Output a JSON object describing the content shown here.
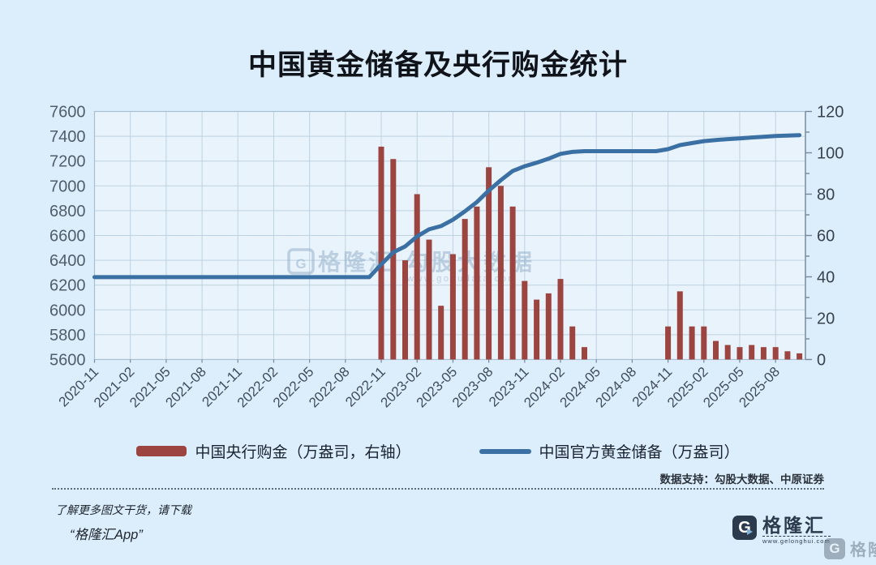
{
  "page": {
    "background": "#dceefb",
    "plot_background": "#e9f3fb",
    "grid_color": "#bdd2e2",
    "frame_color": "#a9c0d4",
    "axis_color": "#76889a",
    "tick_label_color": "#46525f"
  },
  "title": "中国黄金储备及央行购金统计",
  "legend": [
    {
      "type": "bar",
      "color": "#9c4440",
      "label": "中国央行购金（万盎司，右轴）"
    },
    {
      "type": "line",
      "color": "#3a70a3",
      "label": "中国官方黄金储备（万盎司）"
    }
  ],
  "source_note": "数据支持：勾股大数据、中原证券",
  "watermark": {
    "brand": "格隆汇",
    "badge_letter": "G",
    "separator": "|",
    "name": "勾股大数据",
    "url": "www.gogudata.com"
  },
  "footer": {
    "promo_line1": "了解更多图文干货，请下载",
    "promo_line2": "“格隆汇App”",
    "brand_badge_letter": "G",
    "brand_name": "格隆汇",
    "brand_url": "www.gelonghui.com",
    "corner_brand_name": "格隆汇"
  },
  "chart_data": {
    "type": "bar+line combo",
    "title": "中国黄金储备及央行购金统计",
    "grid": true,
    "legend_position": "bottom",
    "x_months": [
      "2020-11",
      "2020-12",
      "2021-01",
      "2021-02",
      "2021-03",
      "2021-04",
      "2021-05",
      "2021-06",
      "2021-07",
      "2021-08",
      "2021-09",
      "2021-10",
      "2021-11",
      "2021-12",
      "2022-01",
      "2022-02",
      "2022-03",
      "2022-04",
      "2022-05",
      "2022-06",
      "2022-07",
      "2022-08",
      "2022-09",
      "2022-10",
      "2022-11",
      "2022-12",
      "2023-01",
      "2023-02",
      "2023-03",
      "2023-04",
      "2023-05",
      "2023-06",
      "2023-07",
      "2023-08",
      "2023-09",
      "2023-10",
      "2023-11",
      "2023-12",
      "2024-01",
      "2024-02",
      "2024-03",
      "2024-04",
      "2024-05",
      "2024-06",
      "2024-07",
      "2024-08",
      "2024-09",
      "2024-10",
      "2024-11",
      "2024-12",
      "2025-01",
      "2025-02",
      "2025-03",
      "2025-04",
      "2025-05",
      "2025-06",
      "2025-07",
      "2025-08",
      "2025-09",
      "2025-10"
    ],
    "x_tick_every": 3,
    "x_tick_labels": [
      "2020-11",
      "2021-02",
      "2021-05",
      "2021-08",
      "2021-11",
      "2022-02",
      "2022-05",
      "2022-08",
      "2022-11",
      "2023-02",
      "2023-05",
      "2023-08",
      "2023-11",
      "2024-02",
      "2024-05",
      "2024-08",
      "2024-11",
      "2025-02",
      "2025-05",
      "2025-08"
    ],
    "left_axis": {
      "min": 5600,
      "max": 7600,
      "step": 200,
      "ticks": [
        7600,
        7400,
        7200,
        7000,
        6800,
        6600,
        6400,
        6200,
        6000,
        5800,
        5600
      ]
    },
    "right_axis": {
      "min": 0,
      "max": 120,
      "step": 20,
      "minor_step": 10,
      "ticks": [
        120,
        100,
        80,
        60,
        40,
        20,
        0
      ]
    },
    "series": [
      {
        "name": "中国央行购金（万盎司，右轴）",
        "type": "bar",
        "axis": "right",
        "color": "#9c4440",
        "values": [
          0,
          0,
          0,
          0,
          0,
          0,
          0,
          0,
          0,
          0,
          0,
          0,
          0,
          0,
          0,
          0,
          0,
          0,
          0,
          0,
          0,
          0,
          0,
          0,
          103,
          97,
          48,
          80,
          58,
          26,
          51,
          68,
          74,
          93,
          84,
          74,
          38,
          29,
          32,
          39,
          16,
          6,
          0,
          0,
          0,
          0,
          0,
          0,
          16,
          33,
          16,
          16,
          9,
          7,
          6,
          7,
          6,
          6,
          4,
          3
        ]
      },
      {
        "name": "中国官方黄金储备（万盎司）",
        "type": "line",
        "axis": "left",
        "color": "#3a70a3",
        "values": [
          6264,
          6264,
          6264,
          6264,
          6264,
          6264,
          6264,
          6264,
          6264,
          6264,
          6264,
          6264,
          6264,
          6264,
          6264,
          6264,
          6264,
          6264,
          6264,
          6264,
          6264,
          6264,
          6264,
          6264,
          6367,
          6464,
          6512,
          6592,
          6650,
          6676,
          6727,
          6795,
          6869,
          6962,
          7046,
          7120,
          7158,
          7187,
          7219,
          7258,
          7274,
          7280,
          7280,
          7280,
          7280,
          7280,
          7280,
          7280,
          7296,
          7329,
          7345,
          7361,
          7370,
          7377,
          7383,
          7390,
          7396,
          7402,
          7406,
          7409
        ]
      }
    ]
  }
}
